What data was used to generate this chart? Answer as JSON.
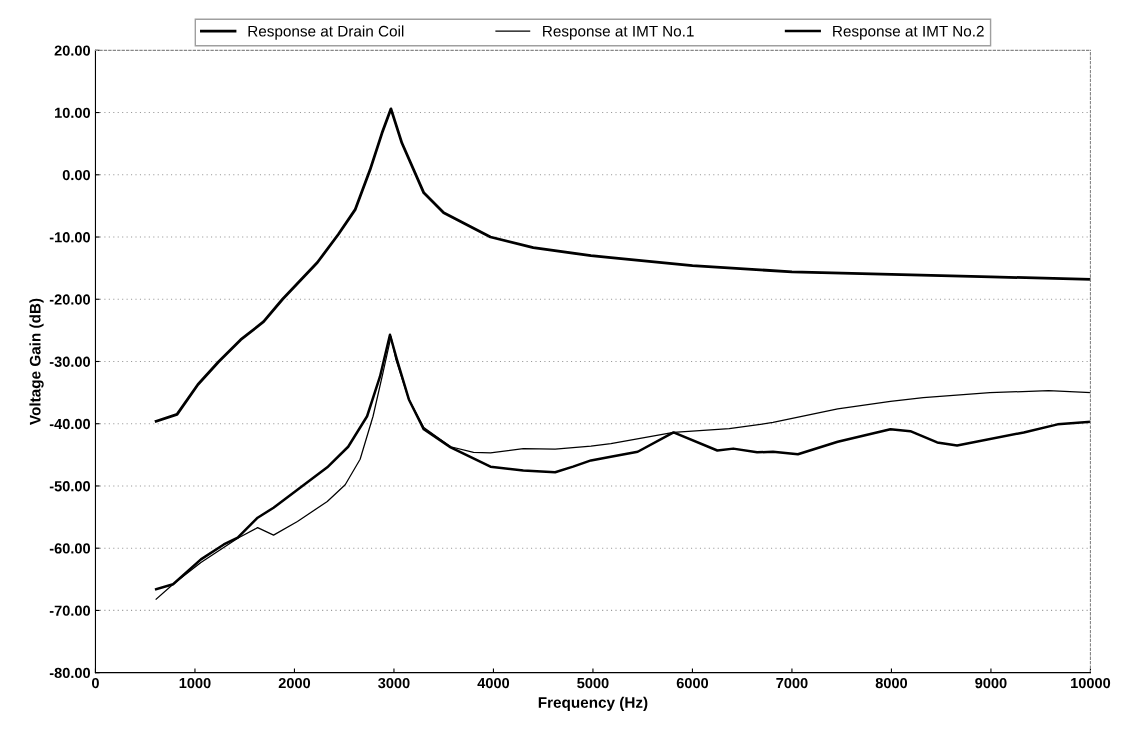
{
  "chart_data": {
    "type": "line",
    "xlabel": "Frequency (Hz)",
    "ylabel": "Voltage Gain (dB)",
    "xlim": [
      0,
      10000
    ],
    "xticks": [
      0,
      1000,
      2000,
      3000,
      4000,
      5000,
      6000,
      7000,
      8000,
      9000,
      10000
    ],
    "ylim": [
      -80,
      20
    ],
    "yticks": [
      {
        "value": -80,
        "label": "-80.00"
      },
      {
        "value": -70,
        "label": "-70.00"
      },
      {
        "value": -60,
        "label": "-60.00"
      },
      {
        "value": -50,
        "label": "-50.00"
      },
      {
        "value": -40,
        "label": "-40.00"
      },
      {
        "value": -30,
        "label": "-30.00"
      },
      {
        "value": -20,
        "label": "-20.00"
      },
      {
        "value": -10,
        "label": "-10.00"
      },
      {
        "value": 0,
        "label": "0.00"
      },
      {
        "value": 10,
        "label": "10.00"
      },
      {
        "value": 20,
        "label": "20.00"
      }
    ],
    "grid": "y",
    "legend": "top",
    "marker": "none",
    "line_style": "solid",
    "series": [
      {
        "name": "Response at Drain Coil",
        "color": "#000000",
        "x": [
          610,
          820,
          1030,
          1240,
          1460,
          1690,
          1880,
          2230,
          2440,
          2610,
          2760,
          2880,
          2970,
          3080,
          3300,
          3500,
          3970,
          4400,
          4980,
          5180,
          6000,
          7000,
          8000,
          9000,
          10000
        ],
        "values": [
          -39.6,
          -38.5,
          -33.7,
          -30,
          -26.5,
          -23.6,
          -20,
          -14.1,
          -9.6,
          -5.6,
          0.8,
          6.7,
          10.6,
          5.1,
          -2.9,
          -6.1,
          -10,
          -11.7,
          -13,
          -13.3,
          -14.6,
          -15.6,
          -16,
          -16.4,
          -16.8
        ]
      },
      {
        "name": "Response at IMT No.1",
        "color": "#000000",
        "x": [
          610,
          780,
          1060,
          1430,
          1630,
          1790,
          2030,
          2330,
          2510,
          2660,
          2790,
          2890,
          2970,
          3020,
          3150,
          3300,
          3570,
          3800,
          3970,
          4300,
          4620,
          4980,
          5180,
          5810,
          6370,
          6810,
          7460,
          7990,
          8320,
          8990,
          9580,
          10000
        ],
        "values": [
          -68.2,
          -65.8,
          -62.3,
          -58.4,
          -56.7,
          -57.9,
          -55.7,
          -52.5,
          -49.8,
          -45.7,
          -38.8,
          -31.8,
          -26,
          -29.7,
          -36.1,
          -40.6,
          -43.7,
          -44.6,
          -44.7,
          -44,
          -44.1,
          -43.6,
          -43.2,
          -41.4,
          -40.8,
          -39.8,
          -37.6,
          -36.4,
          -35.8,
          -35,
          -34.7,
          -35
        ]
      },
      {
        "name": "Response at IMT No.2",
        "color": "#000000",
        "x": [
          610,
          780,
          1060,
          1290,
          1430,
          1630,
          1790,
          2030,
          2330,
          2540,
          2730,
          2860,
          2960,
          3030,
          3150,
          3300,
          3570,
          3970,
          4300,
          4620,
          4800,
          4980,
          5180,
          5450,
          5810,
          6250,
          6410,
          6650,
          6810,
          7060,
          7460,
          7990,
          8190,
          8460,
          8660,
          9330,
          9670,
          10000
        ],
        "values": [
          -66.6,
          -65.8,
          -61.8,
          -59.4,
          -58.3,
          -55.1,
          -53.5,
          -50.6,
          -47,
          -43.7,
          -38.8,
          -32.4,
          -25.7,
          -29.7,
          -36.1,
          -40.9,
          -43.8,
          -46.9,
          -47.5,
          -47.8,
          -46.9,
          -45.9,
          -45.3,
          -44.5,
          -41.4,
          -44.3,
          -44,
          -44.6,
          -44.5,
          -44.9,
          -42.9,
          -40.9,
          -41.2,
          -43,
          -43.5,
          -41.4,
          -40.1,
          -39.7
        ]
      }
    ]
  }
}
